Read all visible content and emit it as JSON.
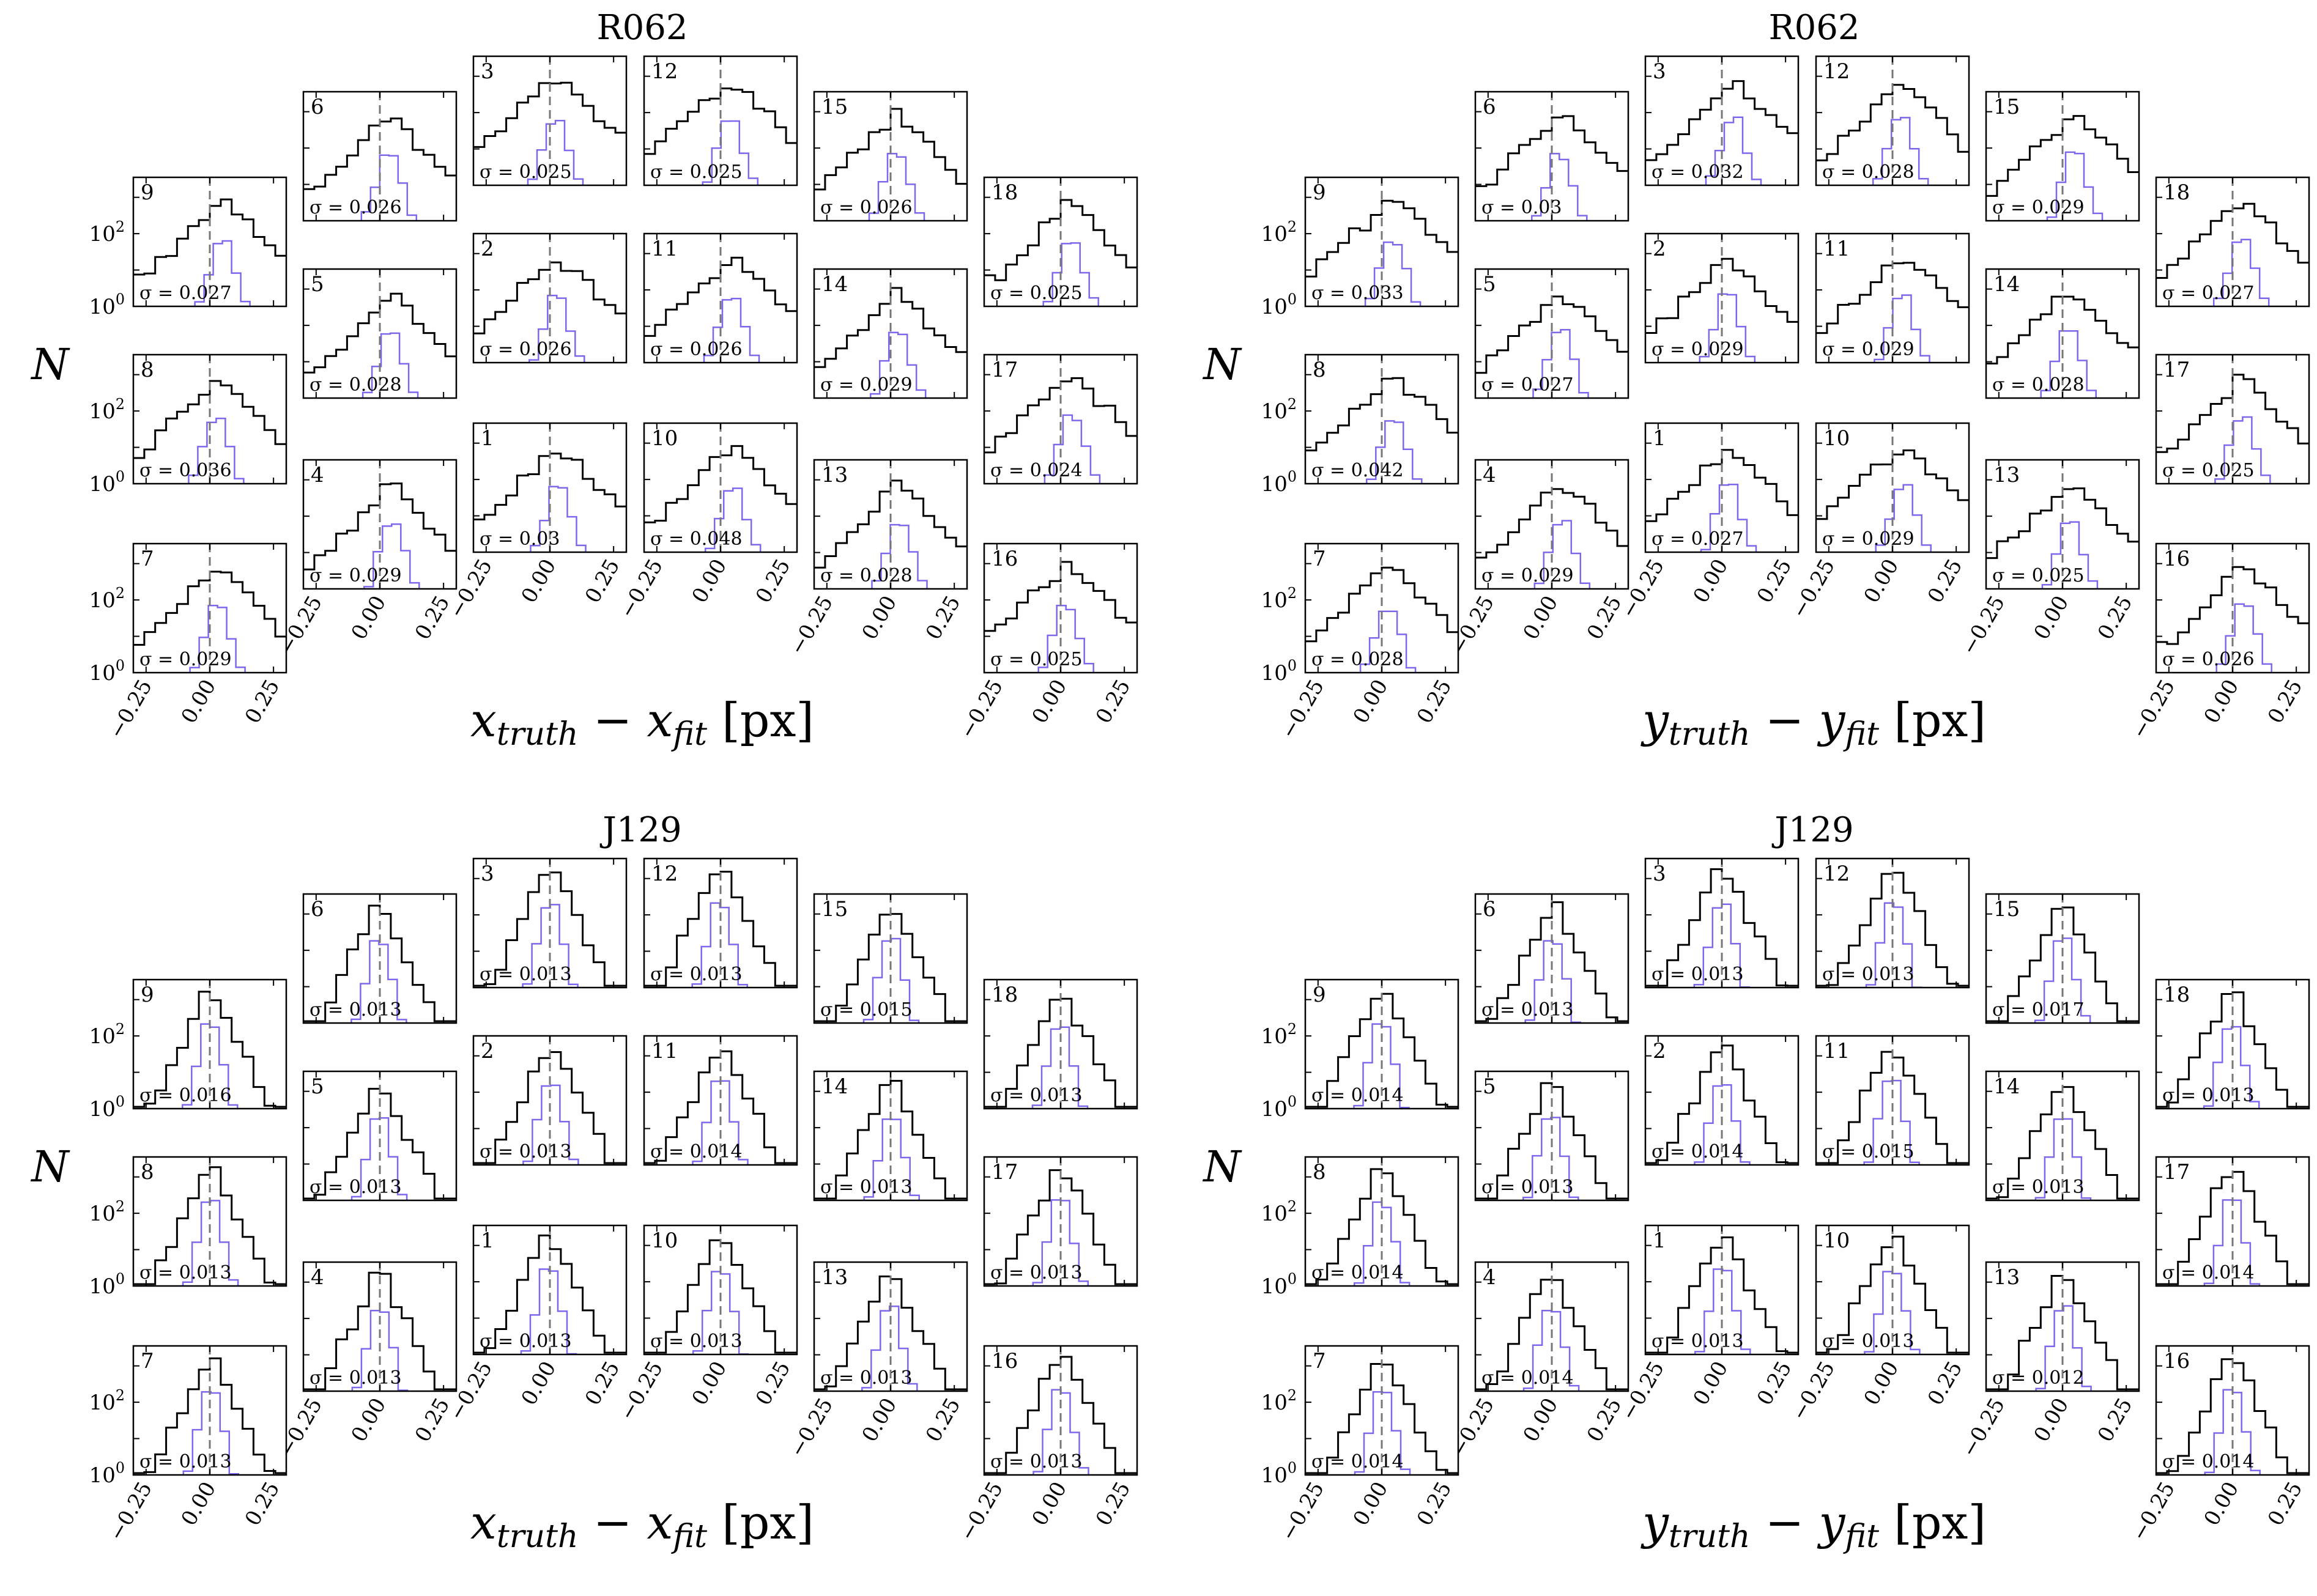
{
  "figure": {
    "tick_labels": [
      "−0.25",
      "0.00",
      "0.25"
    ],
    "y_tick_labels": [
      {
        "mant": "10",
        "exp": "0"
      },
      {
        "mant": "10",
        "exp": "2"
      }
    ],
    "colors": {
      "total": "#000000",
      "subset": "#7b68ee",
      "zero_line": "#777777",
      "background": "#ffffff"
    }
  },
  "chart_data": [
    {
      "type": "histogram",
      "title": "R062",
      "xlabel": {
        "main": "x",
        "sub1": "truth",
        "mid": " − x",
        "sub2": "fit",
        "unit": "[px]"
      },
      "ylabel": "N",
      "xlim": [
        -0.3,
        0.3
      ],
      "ylog": true,
      "detectors": [
        {
          "id": "9",
          "sigma": "σ = 0.027"
        },
        {
          "id": "8",
          "sigma": "σ = 0.036"
        },
        {
          "id": "7",
          "sigma": "σ = 0.029"
        },
        {
          "id": "6",
          "sigma": "σ = 0.026"
        },
        {
          "id": "5",
          "sigma": "σ = 0.028"
        },
        {
          "id": "4",
          "sigma": "σ = 0.029"
        },
        {
          "id": "3",
          "sigma": "σ = 0.025"
        },
        {
          "id": "2",
          "sigma": "σ = 0.026"
        },
        {
          "id": "1",
          "sigma": "σ = 0.03"
        },
        {
          "id": "12",
          "sigma": "σ = 0.025"
        },
        {
          "id": "11",
          "sigma": "σ = 0.026"
        },
        {
          "id": "10",
          "sigma": "σ = 0.048"
        },
        {
          "id": "15",
          "sigma": "σ = 0.026"
        },
        {
          "id": "14",
          "sigma": "σ = 0.029"
        },
        {
          "id": "13",
          "sigma": "σ = 0.028"
        },
        {
          "id": "18",
          "sigma": "σ = 0.025"
        },
        {
          "id": "17",
          "sigma": "σ = 0.024"
        },
        {
          "id": "16",
          "sigma": "σ = 0.025"
        }
      ]
    },
    {
      "type": "histogram",
      "title": "R062",
      "xlabel": {
        "main": "y",
        "sub1": "truth",
        "mid": " − y",
        "sub2": "fit",
        "unit": "[px]"
      },
      "ylabel": "N",
      "xlim": [
        -0.3,
        0.3
      ],
      "ylog": true,
      "detectors": [
        {
          "id": "9",
          "sigma": "σ = 0.033"
        },
        {
          "id": "8",
          "sigma": "σ = 0.042"
        },
        {
          "id": "7",
          "sigma": "σ = 0.028"
        },
        {
          "id": "6",
          "sigma": "σ = 0.03"
        },
        {
          "id": "5",
          "sigma": "σ = 0.027"
        },
        {
          "id": "4",
          "sigma": "σ = 0.029"
        },
        {
          "id": "3",
          "sigma": "σ = 0.032"
        },
        {
          "id": "2",
          "sigma": "σ = 0.029"
        },
        {
          "id": "1",
          "sigma": "σ = 0.027"
        },
        {
          "id": "12",
          "sigma": "σ = 0.028"
        },
        {
          "id": "11",
          "sigma": "σ = 0.029"
        },
        {
          "id": "10",
          "sigma": "σ = 0.029"
        },
        {
          "id": "15",
          "sigma": "σ = 0.029"
        },
        {
          "id": "14",
          "sigma": "σ = 0.028"
        },
        {
          "id": "13",
          "sigma": "σ = 0.025"
        },
        {
          "id": "18",
          "sigma": "σ = 0.027"
        },
        {
          "id": "17",
          "sigma": "σ = 0.025"
        },
        {
          "id": "16",
          "sigma": "σ = 0.026"
        }
      ]
    },
    {
      "type": "histogram",
      "title": "J129",
      "xlabel": {
        "main": "x",
        "sub1": "truth",
        "mid": " − x",
        "sub2": "fit",
        "unit": "[px]"
      },
      "ylabel": "N",
      "xlim": [
        -0.3,
        0.3
      ],
      "ylog": true,
      "detectors": [
        {
          "id": "9",
          "sigma": "σ = 0.016"
        },
        {
          "id": "8",
          "sigma": "σ = 0.013"
        },
        {
          "id": "7",
          "sigma": "σ = 0.013"
        },
        {
          "id": "6",
          "sigma": "σ = 0.013"
        },
        {
          "id": "5",
          "sigma": "σ = 0.013"
        },
        {
          "id": "4",
          "sigma": "σ = 0.013"
        },
        {
          "id": "3",
          "sigma": "σ = 0.013"
        },
        {
          "id": "2",
          "sigma": "σ = 0.013"
        },
        {
          "id": "1",
          "sigma": "σ = 0.013"
        },
        {
          "id": "12",
          "sigma": "σ = 0.013"
        },
        {
          "id": "11",
          "sigma": "σ = 0.014"
        },
        {
          "id": "10",
          "sigma": "σ = 0.013"
        },
        {
          "id": "15",
          "sigma": "σ = 0.015"
        },
        {
          "id": "14",
          "sigma": "σ = 0.013"
        },
        {
          "id": "13",
          "sigma": "σ = 0.013"
        },
        {
          "id": "18",
          "sigma": "σ = 0.013"
        },
        {
          "id": "17",
          "sigma": "σ = 0.013"
        },
        {
          "id": "16",
          "sigma": "σ = 0.013"
        }
      ]
    },
    {
      "type": "histogram",
      "title": "J129",
      "xlabel": {
        "main": "y",
        "sub1": "truth",
        "mid": " − y",
        "sub2": "fit",
        "unit": "[px]"
      },
      "ylabel": "N",
      "xlim": [
        -0.3,
        0.3
      ],
      "ylog": true,
      "detectors": [
        {
          "id": "9",
          "sigma": "σ = 0.014"
        },
        {
          "id": "8",
          "sigma": "σ = 0.014"
        },
        {
          "id": "7",
          "sigma": "σ = 0.014"
        },
        {
          "id": "6",
          "sigma": "σ = 0.013"
        },
        {
          "id": "5",
          "sigma": "σ = 0.013"
        },
        {
          "id": "4",
          "sigma": "σ = 0.014"
        },
        {
          "id": "3",
          "sigma": "σ = 0.013"
        },
        {
          "id": "2",
          "sigma": "σ = 0.014"
        },
        {
          "id": "1",
          "sigma": "σ = 0.013"
        },
        {
          "id": "12",
          "sigma": "σ = 0.013"
        },
        {
          "id": "11",
          "sigma": "σ = 0.015"
        },
        {
          "id": "10",
          "sigma": "σ = 0.013"
        },
        {
          "id": "15",
          "sigma": "σ = 0.017"
        },
        {
          "id": "14",
          "sigma": "σ = 0.013"
        },
        {
          "id": "13",
          "sigma": "σ = 0.012"
        },
        {
          "id": "18",
          "sigma": "σ = 0.013"
        },
        {
          "id": "17",
          "sigma": "σ = 0.014"
        },
        {
          "id": "16",
          "sigma": "σ = 0.014"
        }
      ]
    }
  ]
}
